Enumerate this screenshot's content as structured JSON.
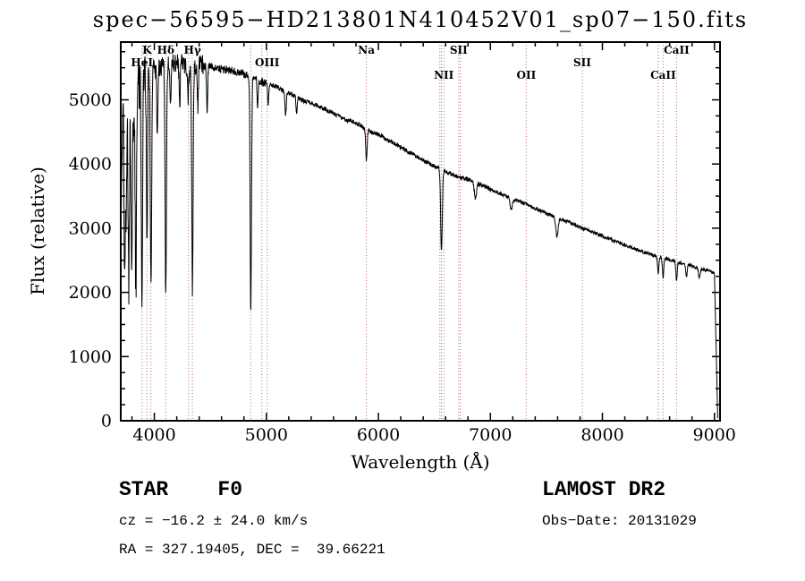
{
  "chart_data": {
    "type": "line",
    "title": "spec−56595−HD213801N410452V01_sp07−150.fits",
    "xlabel": "Wavelength (Å)",
    "ylabel": "Flux (relative)",
    "xlim": [
      3700,
      9050
    ],
    "ylim": [
      0,
      5900
    ],
    "xticks": [
      4000,
      5000,
      6000,
      7000,
      8000,
      9000
    ],
    "yticks": [
      0,
      1000,
      2000,
      3000,
      4000,
      5000
    ],
    "x_minor_step": 200,
    "y_minor_step": 250,
    "grid": false,
    "legend": "none",
    "series_color": "#000000",
    "marker_line_color": "#b87474",
    "continuum": {
      "wavelength": [
        3700,
        3720,
        3735,
        3755,
        3775,
        3795,
        3815,
        3840,
        3865,
        3890,
        3915,
        3940,
        3965,
        3990,
        4020,
        4060,
        4100,
        4150,
        4200,
        4250,
        4300,
        4350,
        4400,
        4450,
        4500,
        4550,
        4600,
        4650,
        4700,
        4750,
        4800,
        4850,
        4900,
        4950,
        5000,
        5100,
        5200,
        5300,
        5400,
        5500,
        5600,
        5700,
        5800,
        5900,
        6000,
        6100,
        6200,
        6300,
        6400,
        6500,
        6600,
        6700,
        6800,
        6900,
        7000,
        7100,
        7200,
        7300,
        7400,
        7500,
        7600,
        7700,
        7800,
        7900,
        8000,
        8100,
        8200,
        8300,
        8400,
        8500,
        8600,
        8700,
        8800,
        8900,
        8950,
        9000,
        9020
      ],
      "flux": [
        3000,
        5100,
        3200,
        5200,
        4600,
        5250,
        4800,
        5350,
        5200,
        5400,
        5300,
        5450,
        5380,
        5500,
        5480,
        5520,
        5500,
        5560,
        5600,
        5570,
        5520,
        5500,
        5560,
        5540,
        5520,
        5500,
        5480,
        5470,
        5450,
        5430,
        5400,
        5380,
        5330,
        5290,
        5260,
        5200,
        5100,
        5010,
        4950,
        4870,
        4790,
        4700,
        4640,
        4530,
        4460,
        4360,
        4260,
        4160,
        4060,
        3960,
        3880,
        3810,
        3760,
        3690,
        3610,
        3530,
        3460,
        3390,
        3310,
        3230,
        3160,
        3090,
        3010,
        2950,
        2880,
        2810,
        2740,
        2670,
        2610,
        2560,
        2510,
        2460,
        2410,
        2360,
        2330,
        2300,
        2280
      ]
    },
    "absorption_features": [
      {
        "wavelength": 3734,
        "depth": 1200,
        "sigma": 5
      },
      {
        "wavelength": 3750,
        "depth": 1500,
        "sigma": 5
      },
      {
        "wavelength": 3771,
        "depth": 2600,
        "sigma": 6
      },
      {
        "wavelength": 3798,
        "depth": 2900,
        "sigma": 6
      },
      {
        "wavelength": 3835,
        "depth": 3200,
        "sigma": 6
      },
      {
        "wavelength": 3889,
        "depth": 3400,
        "sigma": 6
      },
      {
        "wavelength": 3934,
        "depth": 2600,
        "sigma": 5
      },
      {
        "wavelength": 3970,
        "depth": 3400,
        "sigma": 6
      },
      {
        "wavelength": 4026,
        "depth": 900,
        "sigma": 5
      },
      {
        "wavelength": 4102,
        "depth": 3500,
        "sigma": 6
      },
      {
        "wavelength": 4144,
        "depth": 600,
        "sigma": 5
      },
      {
        "wavelength": 4226,
        "depth": 700,
        "sigma": 5
      },
      {
        "wavelength": 4300,
        "depth": 500,
        "sigma": 6
      },
      {
        "wavelength": 4340,
        "depth": 3450,
        "sigma": 6
      },
      {
        "wavelength": 4388,
        "depth": 650,
        "sigma": 5
      },
      {
        "wavelength": 4471,
        "depth": 700,
        "sigma": 5
      },
      {
        "wavelength": 4861,
        "depth": 3700,
        "sigma": 6
      },
      {
        "wavelength": 4922,
        "depth": 380,
        "sigma": 5
      },
      {
        "wavelength": 5016,
        "depth": 320,
        "sigma": 5
      },
      {
        "wavelength": 5172,
        "depth": 350,
        "sigma": 6
      },
      {
        "wavelength": 5270,
        "depth": 250,
        "sigma": 5
      },
      {
        "wavelength": 5893,
        "depth": 480,
        "sigma": 6
      },
      {
        "wavelength": 6563,
        "depth": 1280,
        "sigma": 7
      },
      {
        "wavelength": 6867,
        "depth": 260,
        "sigma": 9
      },
      {
        "wavelength": 7186,
        "depth": 180,
        "sigma": 10
      },
      {
        "wavelength": 7594,
        "depth": 300,
        "sigma": 10
      },
      {
        "wavelength": 8498,
        "depth": 260,
        "sigma": 6
      },
      {
        "wavelength": 8542,
        "depth": 300,
        "sigma": 6
      },
      {
        "wavelength": 8662,
        "depth": 300,
        "sigma": 6
      },
      {
        "wavelength": 8750,
        "depth": 180,
        "sigma": 7
      },
      {
        "wavelength": 8865,
        "depth": 160,
        "sigma": 7
      }
    ],
    "spectral_line_markers": [
      {
        "wavelength": 3889,
        "label": "HeI",
        "row": 1
      },
      {
        "wavelength": 3934,
        "label": "K",
        "row": 0
      },
      {
        "wavelength": 3968,
        "label": "",
        "row": 0
      },
      {
        "wavelength": 4102,
        "label": "Hδ",
        "row": 0
      },
      {
        "wavelength": 4305,
        "label": "",
        "row": 0
      },
      {
        "wavelength": 4340,
        "label": "Hγ",
        "row": 0
      },
      {
        "wavelength": 4861,
        "label": "",
        "row": 0
      },
      {
        "wavelength": 4959,
        "label": "",
        "row": 0
      },
      {
        "wavelength": 5007,
        "label": "OIII",
        "row": 1
      },
      {
        "wavelength": 5893,
        "label": "Na",
        "row": 0
      },
      {
        "wavelength": 6548,
        "label": "",
        "row": 0
      },
      {
        "wavelength": 6563,
        "label": "",
        "row": 0
      },
      {
        "wavelength": 6584,
        "label": "NII",
        "row": 2
      },
      {
        "wavelength": 6717,
        "label": "SII",
        "row": 0
      },
      {
        "wavelength": 6731,
        "label": "",
        "row": 0
      },
      {
        "wavelength": 7320,
        "label": "OII",
        "row": 2
      },
      {
        "wavelength": 7820,
        "label": "SII",
        "row": 1
      },
      {
        "wavelength": 8498,
        "label": "",
        "row": 0
      },
      {
        "wavelength": 8542,
        "label": "CaII",
        "row": 2
      },
      {
        "wavelength": 8662,
        "label": "CaII",
        "row": 0
      }
    ],
    "cutoff": {
      "start": 9000,
      "end": 9030
    }
  },
  "annotations": {
    "class_label": "STAR    F0",
    "survey": "LAMOST DR2",
    "cz": "cz = −16.2 ± 24.0 km/s",
    "obs_date": "Obs−Date: 20131029",
    "ra_dec": "RA = 327.19405, DEC =  39.66221"
  }
}
